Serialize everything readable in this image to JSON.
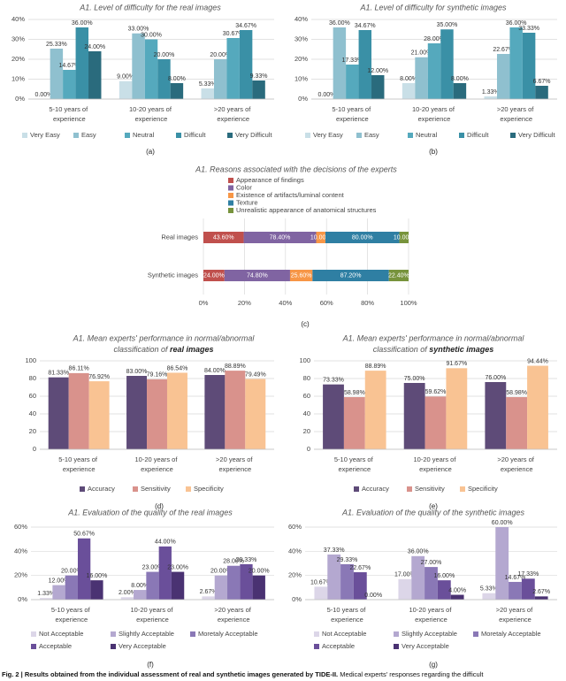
{
  "chart_data": [
    {
      "type": "bar",
      "title": "A1. Level of difficulty for the real images",
      "panel": "(a)",
      "categories": [
        "5-10 years of experience",
        "10-20 years of experience",
        ">20 years of experience"
      ],
      "series": [
        {
          "name": "Very Easy",
          "color": "#c9dfe7",
          "values": [
            0,
            9,
            5.33
          ],
          "value_labels": [
            "0.00%",
            "9.00%",
            "5.33%"
          ]
        },
        {
          "name": "Easy",
          "color": "#8fc0cf",
          "values": [
            25.33,
            33,
            20
          ],
          "value_labels": [
            "25.33%",
            "33.00%",
            "20.00%"
          ]
        },
        {
          "name": "Neutral",
          "color": "#55a9bd",
          "values": [
            14.67,
            30,
            30.67
          ],
          "value_labels": [
            "14.67%",
            "30.00%",
            "30.67%"
          ]
        },
        {
          "name": "Difficult",
          "color": "#3a90a6",
          "values": [
            36,
            20,
            34.67
          ],
          "value_labels": [
            "36.00%",
            "20.00%",
            "34.67%"
          ]
        },
        {
          "name": "Very Difficult",
          "color": "#2a6b7d",
          "values": [
            24,
            8,
            9.33
          ],
          "value_labels": [
            "24.00%",
            "8.00%",
            "9.33%"
          ]
        }
      ],
      "ylim": [
        0,
        40
      ],
      "yticks": [
        {
          "value": 0,
          "label": "0%"
        },
        {
          "value": 10,
          "label": "10%"
        },
        {
          "value": 20,
          "label": "20%"
        },
        {
          "value": 30,
          "label": "30%"
        },
        {
          "value": 40,
          "label": "40%"
        }
      ],
      "grid": true
    },
    {
      "type": "bar",
      "title": "A1. Level of difficulty for synthetic images",
      "panel": "(b)",
      "categories": [
        "5-10 years of experience",
        "10-20 years of experience",
        ">20 years of experience"
      ],
      "series": [
        {
          "name": "Very Easy",
          "color": "#c9dfe7",
          "values": [
            0,
            8,
            1.33
          ],
          "value_labels": [
            "0.00%",
            "8.00%",
            "1.33%"
          ]
        },
        {
          "name": "Easy",
          "color": "#8fc0cf",
          "values": [
            36,
            21,
            22.67
          ],
          "value_labels": [
            "36.00%",
            "21.00%",
            "22.67%"
          ]
        },
        {
          "name": "Neutral",
          "color": "#55a9bd",
          "values": [
            17.33,
            28,
            36
          ],
          "value_labels": [
            "17.33%",
            "28.00%",
            "36.00%"
          ]
        },
        {
          "name": "Difficult",
          "color": "#3a90a6",
          "values": [
            34.67,
            35,
            33.33
          ],
          "value_labels": [
            "34.67%",
            "35.00%",
            "33.33%"
          ]
        },
        {
          "name": "Very Difficult",
          "color": "#2a6b7d",
          "values": [
            12,
            8,
            6.67
          ],
          "value_labels": [
            "12.00%",
            "8.00%",
            "6.67%"
          ]
        }
      ],
      "ylim": [
        0,
        40
      ],
      "yticks": [
        {
          "value": 0,
          "label": "0%"
        },
        {
          "value": 10,
          "label": "10%"
        },
        {
          "value": 20,
          "label": "20%"
        },
        {
          "value": 30,
          "label": "30%"
        },
        {
          "value": 40,
          "label": "40%"
        }
      ],
      "grid": true
    },
    {
      "type": "bar",
      "orientation": "horizontal",
      "stacking": "percent",
      "title": "A1. Reasons associated with the decisions of the experts",
      "panel": "(c)",
      "categories": [
        "Real images",
        "Synthetic images"
      ],
      "series": [
        {
          "name": "Appearance of findings",
          "color": "#c0504d",
          "values": [
            43.6,
            24
          ],
          "value_labels": [
            "43.60%",
            "24.00%"
          ]
        },
        {
          "name": "Color",
          "color": "#8064a2",
          "values": [
            78.4,
            74.8
          ],
          "value_labels": [
            "78.40%",
            "74.80%"
          ]
        },
        {
          "name": "Existence of artifacts/luminal content",
          "color": "#f79646",
          "values": [
            10,
            25.6
          ],
          "value_labels": [
            "10.00%",
            "25.60%"
          ]
        },
        {
          "name": "Texture",
          "color": "#2f7fa3",
          "values": [
            80,
            87.2
          ],
          "value_labels": [
            "80.00%",
            "87.20%"
          ]
        },
        {
          "name": "Unrealistic appearance of anatomical structures",
          "color": "#77933c",
          "values": [
            10,
            22.4
          ],
          "value_labels": [
            "10.00%",
            "22.40%"
          ]
        }
      ],
      "xlim": [
        0,
        100
      ],
      "xticks": [
        {
          "value": 0,
          "label": "0%"
        },
        {
          "value": 20,
          "label": "20%"
        },
        {
          "value": 40,
          "label": "40%"
        },
        {
          "value": 60,
          "label": "60%"
        },
        {
          "value": 80,
          "label": "80%"
        },
        {
          "value": 100,
          "label": "100%"
        }
      ],
      "grid": true
    },
    {
      "type": "bar",
      "title": "A1. Mean experts' performance in normal/abnormal",
      "title_line2": "classification of",
      "title_emphasis": "real images",
      "panel": "(d)",
      "categories": [
        "5-10 years of experience",
        "10-20 years of experience",
        ">20 years of experience"
      ],
      "series": [
        {
          "name": "Accuracy",
          "color": "#5e4b78",
          "values": [
            81.33,
            83,
            84
          ],
          "value_labels": [
            "81.33%",
            "83.00%",
            "84.00%"
          ]
        },
        {
          "name": "Sensitivity",
          "color": "#d9928c",
          "values": [
            86.11,
            79.16,
            88.89
          ],
          "value_labels": [
            "86.11%",
            "79.16%",
            "88.89%"
          ]
        },
        {
          "name": "Specificity",
          "color": "#f9c393",
          "values": [
            76.92,
            86.54,
            79.49
          ],
          "value_labels": [
            "76.92%",
            "86.54%",
            "79.49%"
          ]
        }
      ],
      "ylim": [
        0,
        100
      ],
      "yticks": [
        0,
        20,
        40,
        60,
        80,
        100
      ],
      "grid": true
    },
    {
      "type": "bar",
      "title": "A1. Mean experts' performance in normal/abnormal",
      "title_line2": "classification of",
      "title_emphasis": "synthetic images",
      "panel": "(e)",
      "categories": [
        "5-10 years of experience",
        "10-20 years of experience",
        ">20 years of experience"
      ],
      "series": [
        {
          "name": "Accuracy",
          "color": "#5e4b78",
          "values": [
            73.33,
            75,
            76
          ],
          "value_labels": [
            "73.33%",
            "75.00%",
            "76.00%"
          ]
        },
        {
          "name": "Sensitivity",
          "color": "#d9928c",
          "values": [
            58.98,
            59.62,
            58.98
          ],
          "value_labels": [
            "58.98%",
            "59.62%",
            "58.98%"
          ]
        },
        {
          "name": "Specificity",
          "color": "#f9c393",
          "values": [
            88.89,
            91.67,
            94.44
          ],
          "value_labels": [
            "88.89%",
            "91.67%",
            "94.44%"
          ]
        }
      ],
      "ylim": [
        0,
        100
      ],
      "yticks": [
        0,
        20,
        40,
        60,
        80,
        100
      ],
      "grid": true
    },
    {
      "type": "bar",
      "title": "A1. Evaluation of the quality of the real images",
      "panel": "(f)",
      "categories": [
        "5-10 years of experience",
        "10-20 years of experience",
        ">20 years of experience"
      ],
      "series": [
        {
          "name": "Not Acceptable",
          "color": "#dcd6e8",
          "values": [
            1.33,
            2,
            2.67
          ],
          "value_labels": [
            "1.33%",
            "2.00%",
            "2.67%"
          ]
        },
        {
          "name": "Slightly Acceptable",
          "color": "#b4a8d0",
          "values": [
            12,
            8,
            20
          ],
          "value_labels": [
            "12.00%",
            "8.00%",
            "20.00%"
          ]
        },
        {
          "name": "Moretaly Acceptable",
          "color": "#8a78b6",
          "values": [
            20,
            23,
            28
          ],
          "value_labels": [
            "20.00%",
            "23.00%",
            "28.00%"
          ]
        },
        {
          "name": "Acceptable",
          "color": "#6a4f9a",
          "values": [
            50.67,
            44,
            29.33
          ],
          "value_labels": [
            "50.67%",
            "44.00%",
            "29.33%"
          ]
        },
        {
          "name": "Very Acceptable",
          "color": "#4a3272",
          "values": [
            16,
            23,
            20
          ],
          "value_labels": [
            "16.00%",
            "23.00%",
            "20.00%"
          ]
        }
      ],
      "ylim": [
        0,
        60
      ],
      "yticks": [
        {
          "value": 0,
          "label": "0%"
        },
        {
          "value": 20,
          "label": "20%"
        },
        {
          "value": 40,
          "label": "40%"
        },
        {
          "value": 60,
          "label": "60%"
        }
      ],
      "grid": true
    },
    {
      "type": "bar",
      "title": "A1. Evaluation of the quality of the synthetic images",
      "panel": "(g)",
      "categories": [
        "5-10 years of experience",
        "10-20 years of experience",
        ">20 years of experience"
      ],
      "series": [
        {
          "name": "Not Acceptable",
          "color": "#dcd6e8",
          "values": [
            10.67,
            17,
            5.33
          ],
          "value_labels": [
            "10.67%",
            "17.00%",
            "5.33%"
          ]
        },
        {
          "name": "Slightly Acceptable",
          "color": "#b4a8d0",
          "values": [
            37.33,
            36,
            60
          ],
          "value_labels": [
            "37.33%",
            "36.00%",
            "60.00%"
          ]
        },
        {
          "name": "Moretaly Acceptable",
          "color": "#8a78b6",
          "values": [
            29.33,
            27,
            14.67
          ],
          "value_labels": [
            "29.33%",
            "27.00%",
            "14.67%"
          ]
        },
        {
          "name": "Acceptable",
          "color": "#6a4f9a",
          "values": [
            22.67,
            16,
            17.33
          ],
          "value_labels": [
            "22.67%",
            "16.00%",
            "17.33%"
          ]
        },
        {
          "name": "Very Acceptable",
          "color": "#4a3272",
          "values": [
            0,
            4,
            2.67
          ],
          "value_labels": [
            "0.00%",
            "4.00%",
            "2.67%"
          ]
        }
      ],
      "ylim": [
        0,
        60
      ],
      "yticks": [
        {
          "value": 0,
          "label": "0%"
        },
        {
          "value": 20,
          "label": "20%"
        },
        {
          "value": 40,
          "label": "40%"
        },
        {
          "value": 60,
          "label": "60%"
        }
      ],
      "grid": true
    }
  ],
  "caption_bold": "Fig. 2 | Results obtained from the individual assessment of real and synthetic images generated by TIDE-II.",
  "caption": "Medical experts' responses regarding the difficult"
}
